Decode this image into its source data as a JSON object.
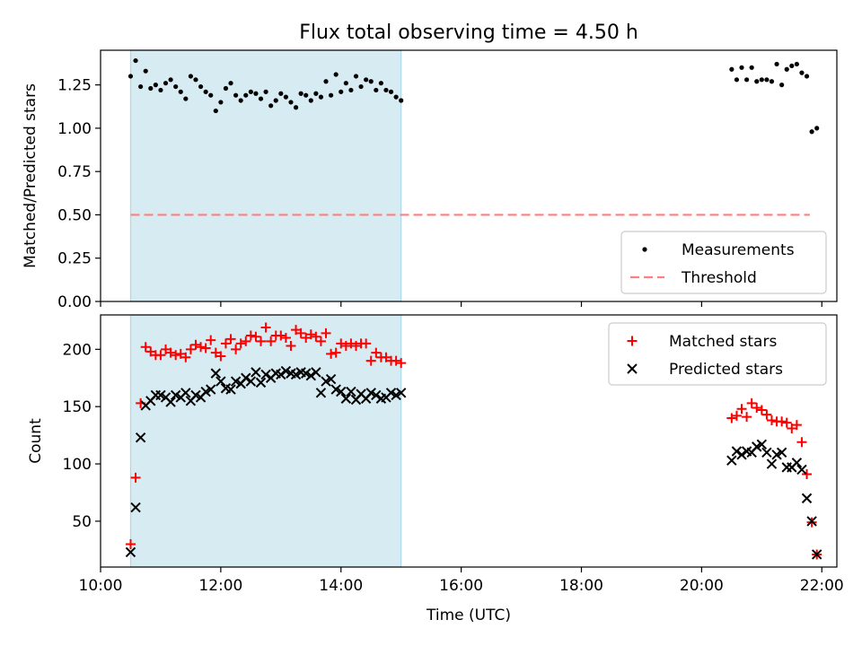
{
  "title": "Flux total observing time = 4.50 h",
  "colors": {
    "shade": "#add8e6",
    "threshold": "#ff7f7f",
    "measurement": "#000000",
    "matched": "#ff0000",
    "predicted": "#000000"
  },
  "chart_data": [
    {
      "type": "scatter",
      "ylabel": "Matched/Predicted stars",
      "xlim": [
        "10:00",
        "22:15"
      ],
      "ylim": [
        0.0,
        1.45
      ],
      "x_ticks": [
        "10:00",
        "12:00",
        "14:00",
        "16:00",
        "18:00",
        "20:00",
        "22:00"
      ],
      "y_ticks": [
        "0.00",
        "0.25",
        "0.50",
        "0.75",
        "1.00",
        "1.25"
      ],
      "shaded_region": [
        "10:30",
        "15:00"
      ],
      "threshold": {
        "value": 0.5,
        "x_start": "10:30",
        "x_end": "21:48"
      },
      "legend": [
        "Measurements",
        "Threshold"
      ],
      "legend_position": "bottom-right",
      "series": [
        {
          "name": "Measurements",
          "points": [
            [
              "10:30",
              1.3
            ],
            [
              "10:35",
              1.39
            ],
            [
              "10:40",
              1.24
            ],
            [
              "10:45",
              1.33
            ],
            [
              "10:50",
              1.23
            ],
            [
              "10:55",
              1.25
            ],
            [
              "11:00",
              1.22
            ],
            [
              "11:05",
              1.26
            ],
            [
              "11:10",
              1.28
            ],
            [
              "11:15",
              1.24
            ],
            [
              "11:20",
              1.21
            ],
            [
              "11:25",
              1.17
            ],
            [
              "11:30",
              1.3
            ],
            [
              "11:35",
              1.28
            ],
            [
              "11:40",
              1.24
            ],
            [
              "11:45",
              1.21
            ],
            [
              "11:50",
              1.19
            ],
            [
              "11:55",
              1.1
            ],
            [
              "12:00",
              1.15
            ],
            [
              "12:05",
              1.23
            ],
            [
              "12:10",
              1.26
            ],
            [
              "12:15",
              1.19
            ],
            [
              "12:20",
              1.16
            ],
            [
              "12:25",
              1.19
            ],
            [
              "12:30",
              1.21
            ],
            [
              "12:35",
              1.2
            ],
            [
              "12:40",
              1.17
            ],
            [
              "12:45",
              1.21
            ],
            [
              "12:50",
              1.13
            ],
            [
              "12:55",
              1.16
            ],
            [
              "13:00",
              1.2
            ],
            [
              "13:05",
              1.18
            ],
            [
              "13:10",
              1.15
            ],
            [
              "13:15",
              1.12
            ],
            [
              "13:20",
              1.2
            ],
            [
              "13:25",
              1.19
            ],
            [
              "13:30",
              1.16
            ],
            [
              "13:35",
              1.2
            ],
            [
              "13:40",
              1.18
            ],
            [
              "13:45",
              1.27
            ],
            [
              "13:50",
              1.19
            ],
            [
              "13:55",
              1.31
            ],
            [
              "14:00",
              1.21
            ],
            [
              "14:05",
              1.26
            ],
            [
              "14:10",
              1.22
            ],
            [
              "14:15",
              1.3
            ],
            [
              "14:20",
              1.24
            ],
            [
              "14:25",
              1.28
            ],
            [
              "14:30",
              1.27
            ],
            [
              "14:35",
              1.22
            ],
            [
              "14:40",
              1.26
            ],
            [
              "14:45",
              1.22
            ],
            [
              "14:50",
              1.21
            ],
            [
              "14:55",
              1.18
            ],
            [
              "15:00",
              1.16
            ],
            [
              "20:30",
              1.34
            ],
            [
              "20:35",
              1.28
            ],
            [
              "20:40",
              1.35
            ],
            [
              "20:45",
              1.28
            ],
            [
              "20:50",
              1.35
            ],
            [
              "20:55",
              1.27
            ],
            [
              "21:00",
              1.28
            ],
            [
              "21:05",
              1.28
            ],
            [
              "21:10",
              1.27
            ],
            [
              "21:15",
              1.37
            ],
            [
              "21:20",
              1.25
            ],
            [
              "21:25",
              1.34
            ],
            [
              "21:30",
              1.36
            ],
            [
              "21:35",
              1.37
            ],
            [
              "21:40",
              1.32
            ],
            [
              "21:45",
              1.3
            ],
            [
              "21:50",
              0.98
            ],
            [
              "21:55",
              1.0
            ]
          ]
        }
      ]
    },
    {
      "type": "scatter",
      "ylabel": "Count",
      "xlabel": "Time (UTC)",
      "xlim": [
        "10:00",
        "22:15"
      ],
      "ylim": [
        10,
        230
      ],
      "x_ticks": [
        "10:00",
        "12:00",
        "14:00",
        "16:00",
        "18:00",
        "20:00",
        "22:00"
      ],
      "y_ticks": [
        "50",
        "100",
        "150",
        "200"
      ],
      "shaded_region": [
        "10:30",
        "15:00"
      ],
      "legend": [
        "Matched stars",
        "Predicted stars"
      ],
      "legend_position": "top-right",
      "series": [
        {
          "name": "Matched stars",
          "points": [
            [
              "10:30",
              30
            ],
            [
              "10:35",
              88
            ],
            [
              "10:40",
              153
            ],
            [
              "10:45",
              202
            ],
            [
              "10:50",
              198
            ],
            [
              "10:55",
              195
            ],
            [
              "11:00",
              195
            ],
            [
              "11:05",
              200
            ],
            [
              "11:10",
              197
            ],
            [
              "11:15",
              195
            ],
            [
              "11:20",
              196
            ],
            [
              "11:25",
              193
            ],
            [
              "11:30",
              200
            ],
            [
              "11:35",
              204
            ],
            [
              "11:40",
              202
            ],
            [
              "11:45",
              201
            ],
            [
              "11:50",
              208
            ],
            [
              "11:55",
              197
            ],
            [
              "12:00",
              194
            ],
            [
              "12:05",
              205
            ],
            [
              "12:10",
              209
            ],
            [
              "12:15",
              200
            ],
            [
              "12:20",
              205
            ],
            [
              "12:25",
              207
            ],
            [
              "12:30",
              212
            ],
            [
              "12:35",
              211
            ],
            [
              "12:40",
              207
            ],
            [
              "12:45",
              219
            ],
            [
              "12:50",
              207
            ],
            [
              "12:55",
              212
            ],
            [
              "13:00",
              212
            ],
            [
              "13:05",
              210
            ],
            [
              "13:10",
              203
            ],
            [
              "13:15",
              217
            ],
            [
              "13:20",
              214
            ],
            [
              "13:25",
              210
            ],
            [
              "13:30",
              213
            ],
            [
              "13:35",
              211
            ],
            [
              "13:40",
              207
            ],
            [
              "13:45",
              214
            ],
            [
              "13:50",
              196
            ],
            [
              "13:55",
              197
            ],
            [
              "14:00",
              205
            ],
            [
              "14:05",
              203
            ],
            [
              "14:10",
              205
            ],
            [
              "14:15",
              203
            ],
            [
              "14:20",
              205
            ],
            [
              "14:25",
              205
            ],
            [
              "14:30",
              190
            ],
            [
              "14:35",
              197
            ],
            [
              "14:40",
              193
            ],
            [
              "14:45",
              193
            ],
            [
              "14:50",
              190
            ],
            [
              "14:55",
              190
            ],
            [
              "15:00",
              188
            ],
            [
              "20:30",
              140
            ],
            [
              "20:35",
              142
            ],
            [
              "20:40",
              148
            ],
            [
              "20:45",
              141
            ],
            [
              "20:50",
              153
            ],
            [
              "20:55",
              149
            ],
            [
              "21:00",
              147
            ],
            [
              "21:05",
              143
            ],
            [
              "21:10",
              138
            ],
            [
              "21:15",
              137
            ],
            [
              "21:20",
              137
            ],
            [
              "21:25",
              136
            ],
            [
              "21:30",
              131
            ],
            [
              "21:35",
              134
            ],
            [
              "21:40",
              119
            ],
            [
              "21:45",
              91
            ],
            [
              "21:50",
              49
            ],
            [
              "21:55",
              21
            ]
          ]
        },
        {
          "name": "Predicted stars",
          "points": [
            [
              "10:30",
              23
            ],
            [
              "10:35",
              62
            ],
            [
              "10:40",
              123
            ],
            [
              "10:45",
              151
            ],
            [
              "10:50",
              155
            ],
            [
              "10:55",
              160
            ],
            [
              "11:00",
              160
            ],
            [
              "11:05",
              158
            ],
            [
              "11:10",
              154
            ],
            [
              "11:15",
              160
            ],
            [
              "11:20",
              158
            ],
            [
              "11:25",
              162
            ],
            [
              "11:30",
              155
            ],
            [
              "11:35",
              160
            ],
            [
              "11:40",
              158
            ],
            [
              "11:45",
              163
            ],
            [
              "11:50",
              165
            ],
            [
              "11:55",
              179
            ],
            [
              "12:00",
              172
            ],
            [
              "12:05",
              166
            ],
            [
              "12:10",
              165
            ],
            [
              "12:15",
              172
            ],
            [
              "12:20",
              170
            ],
            [
              "12:25",
              175
            ],
            [
              "12:30",
              172
            ],
            [
              "12:35",
              180
            ],
            [
              "12:40",
              171
            ],
            [
              "12:45",
              178
            ],
            [
              "12:50",
              175
            ],
            [
              "12:55",
              179
            ],
            [
              "13:00",
              178
            ],
            [
              "13:05",
              181
            ],
            [
              "13:10",
              179
            ],
            [
              "13:15",
              178
            ],
            [
              "13:20",
              180
            ],
            [
              "13:25",
              179
            ],
            [
              "13:30",
              177
            ],
            [
              "13:35",
              180
            ],
            [
              "13:40",
              162
            ],
            [
              "13:45",
              172
            ],
            [
              "13:50",
              174
            ],
            [
              "13:55",
              165
            ],
            [
              "14:00",
              163
            ],
            [
              "14:05",
              157
            ],
            [
              "14:10",
              163
            ],
            [
              "14:15",
              156
            ],
            [
              "14:20",
              161
            ],
            [
              "14:25",
              157
            ],
            [
              "14:30",
              162
            ],
            [
              "14:35",
              160
            ],
            [
              "14:40",
              157
            ],
            [
              "14:45",
              158
            ],
            [
              "14:50",
              162
            ],
            [
              "14:55",
              160
            ],
            [
              "15:00",
              162
            ],
            [
              "20:30",
              103
            ],
            [
              "20:35",
              111
            ],
            [
              "20:40",
              108
            ],
            [
              "20:45",
              111
            ],
            [
              "20:50",
              110
            ],
            [
              "20:55",
              115
            ],
            [
              "21:00",
              117
            ],
            [
              "21:05",
              110
            ],
            [
              "21:10",
              100
            ],
            [
              "21:15",
              108
            ],
            [
              "21:20",
              110
            ],
            [
              "21:25",
              97
            ],
            [
              "21:30",
              97
            ],
            [
              "21:35",
              101
            ],
            [
              "21:40",
              95
            ],
            [
              "21:45",
              70
            ],
            [
              "21:50",
              50
            ],
            [
              "21:55",
              21
            ]
          ]
        }
      ]
    }
  ]
}
